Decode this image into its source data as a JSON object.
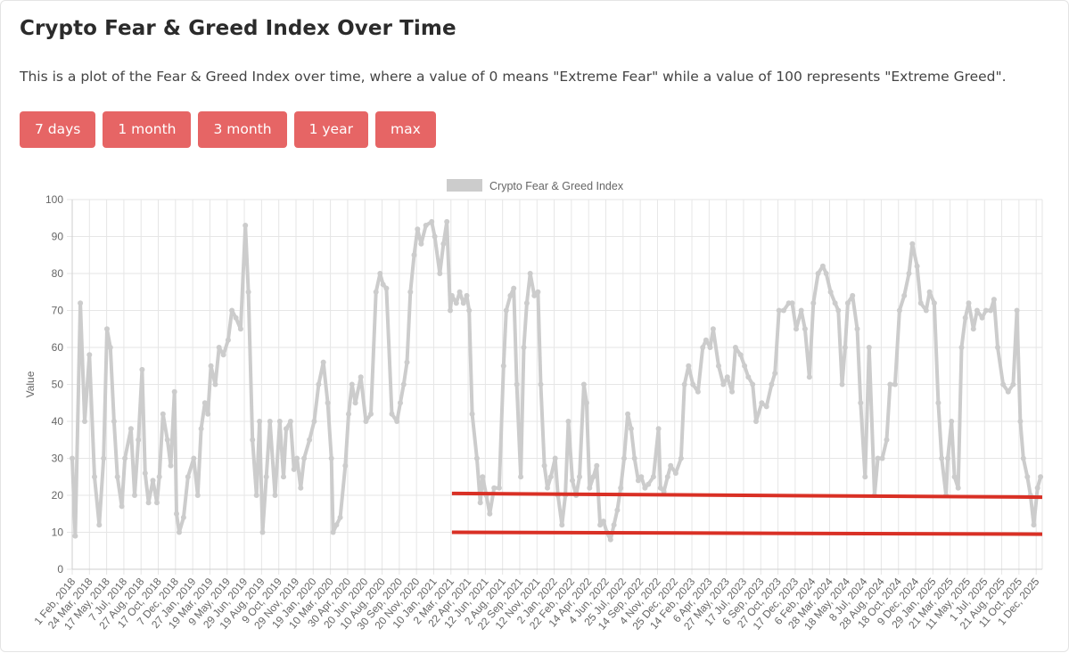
{
  "page": {
    "title": "Crypto Fear & Greed Index Over Time",
    "description": "This is a plot of the Fear & Greed Index over time, where a value of 0 means \"Extreme Fear\" while a value of 100 represents \"Extreme Greed\"."
  },
  "range_buttons": [
    {
      "label": "7 days"
    },
    {
      "label": "1 month"
    },
    {
      "label": "3 month"
    },
    {
      "label": "1 year"
    },
    {
      "label": "max"
    }
  ],
  "colors": {
    "button": "#e66565",
    "series": "#cccccc",
    "annotation": "#d93025",
    "grid": "#e6e6e6"
  },
  "chart_data": {
    "type": "line",
    "ylabel": "Value",
    "ylim": [
      0,
      100
    ],
    "yticks": [
      0,
      10,
      20,
      30,
      40,
      50,
      60,
      70,
      80,
      90,
      100
    ],
    "grid": true,
    "legend_position": "top-center",
    "x_tick_labels": [
      "1 Feb, 2018",
      "24 Mar, 2018",
      "17 May, 2018",
      "7 Jul, 2018",
      "27 Aug, 2018",
      "17 Oct, 2018",
      "7 Dec, 2018",
      "27 Jan, 2019",
      "19 Mar, 2019",
      "9 May, 2019",
      "29 Jun, 2019",
      "19 Aug, 2019",
      "9 Oct, 2019",
      "29 Nov, 2019",
      "19 Jan, 2020",
      "10 Mar, 2020",
      "30 Apr, 2020",
      "20 Jun, 2020",
      "10 Aug, 2020",
      "30 Sep, 2020",
      "20 Nov, 2020",
      "10 Jan, 2021",
      "2 Mar, 2021",
      "22 Apr, 2021",
      "12 Jun, 2021",
      "2 Aug, 2021",
      "22 Sep, 2021",
      "12 Nov, 2021",
      "2 Jan, 2022",
      "22 Feb, 2022",
      "14 Apr, 2022",
      "4 Jun, 2022",
      "25 Jul, 2022",
      "14 Sep, 2022",
      "4 Nov, 2022",
      "25 Dec, 2022",
      "14 Feb, 2023",
      "6 Apr, 2023",
      "27 May, 2023",
      "17 Jul, 2023",
      "6 Sep, 2023",
      "27 Oct, 2023",
      "17 Dec, 2023",
      "6 Feb, 2024",
      "28 Mar, 2024",
      "18 May, 2024",
      "8 Jul, 2024",
      "28 Aug, 2024",
      "18 Oct, 2024",
      "9 Dec, 2024",
      "29 Jan, 2025",
      "21 Mar, 2025",
      "11 May, 2025",
      "1 Jul, 2025",
      "21 Aug, 2025",
      "11 Oct, 2025",
      "1 Dec, 2025"
    ],
    "series": [
      {
        "name": "Crypto Fear & Greed Index",
        "color": "#cccccc",
        "points": [
          [
            "2018-02-01",
            30
          ],
          [
            "2018-02-10",
            9
          ],
          [
            "2018-02-25",
            72
          ],
          [
            "2018-03-10",
            40
          ],
          [
            "2018-03-24",
            58
          ],
          [
            "2018-04-08",
            25
          ],
          [
            "2018-04-22",
            12
          ],
          [
            "2018-05-05",
            30
          ],
          [
            "2018-05-15",
            65
          ],
          [
            "2018-05-25",
            60
          ],
          [
            "2018-06-05",
            40
          ],
          [
            "2018-06-15",
            25
          ],
          [
            "2018-06-28",
            17
          ],
          [
            "2018-07-07",
            30
          ],
          [
            "2018-07-25",
            38
          ],
          [
            "2018-08-05",
            20
          ],
          [
            "2018-08-16",
            35
          ],
          [
            "2018-08-27",
            54
          ],
          [
            "2018-09-05",
            26
          ],
          [
            "2018-09-15",
            18
          ],
          [
            "2018-09-28",
            24
          ],
          [
            "2018-10-10",
            18
          ],
          [
            "2018-10-17",
            25
          ],
          [
            "2018-10-28",
            42
          ],
          [
            "2018-11-10",
            35
          ],
          [
            "2018-11-20",
            28
          ],
          [
            "2018-12-01",
            48
          ],
          [
            "2018-12-07",
            15
          ],
          [
            "2018-12-15",
            10
          ],
          [
            "2018-12-28",
            14
          ],
          [
            "2019-01-10",
            25
          ],
          [
            "2019-01-27",
            30
          ],
          [
            "2019-02-08",
            20
          ],
          [
            "2019-02-18",
            38
          ],
          [
            "2019-03-01",
            45
          ],
          [
            "2019-03-10",
            42
          ],
          [
            "2019-03-19",
            55
          ],
          [
            "2019-04-01",
            50
          ],
          [
            "2019-04-12",
            60
          ],
          [
            "2019-04-25",
            58
          ],
          [
            "2019-05-09",
            62
          ],
          [
            "2019-05-20",
            70
          ],
          [
            "2019-06-01",
            68
          ],
          [
            "2019-06-15",
            65
          ],
          [
            "2019-06-29",
            93
          ],
          [
            "2019-07-08",
            75
          ],
          [
            "2019-07-20",
            35
          ],
          [
            "2019-08-01",
            20
          ],
          [
            "2019-08-10",
            40
          ],
          [
            "2019-08-19",
            10
          ],
          [
            "2019-08-30",
            25
          ],
          [
            "2019-09-10",
            40
          ],
          [
            "2019-09-25",
            20
          ],
          [
            "2019-10-09",
            40
          ],
          [
            "2019-10-20",
            25
          ],
          [
            "2019-10-28",
            38
          ],
          [
            "2019-11-10",
            40
          ],
          [
            "2019-11-20",
            27
          ],
          [
            "2019-11-29",
            30
          ],
          [
            "2019-12-10",
            22
          ],
          [
            "2019-12-20",
            30
          ],
          [
            "2020-01-05",
            35
          ],
          [
            "2020-01-19",
            40
          ],
          [
            "2020-02-01",
            50
          ],
          [
            "2020-02-15",
            56
          ],
          [
            "2020-02-28",
            45
          ],
          [
            "2020-03-10",
            30
          ],
          [
            "2020-03-15",
            10
          ],
          [
            "2020-03-25",
            12
          ],
          [
            "2020-04-05",
            14
          ],
          [
            "2020-04-20",
            28
          ],
          [
            "2020-04-30",
            42
          ],
          [
            "2020-05-10",
            50
          ],
          [
            "2020-05-20",
            45
          ],
          [
            "2020-06-05",
            52
          ],
          [
            "2020-06-20",
            40
          ],
          [
            "2020-07-05",
            42
          ],
          [
            "2020-07-20",
            75
          ],
          [
            "2020-08-01",
            80
          ],
          [
            "2020-08-10",
            77
          ],
          [
            "2020-08-20",
            76
          ],
          [
            "2020-09-05",
            42
          ],
          [
            "2020-09-20",
            40
          ],
          [
            "2020-09-30",
            45
          ],
          [
            "2020-10-10",
            50
          ],
          [
            "2020-10-20",
            56
          ],
          [
            "2020-10-30",
            75
          ],
          [
            "2020-11-10",
            85
          ],
          [
            "2020-11-20",
            92
          ],
          [
            "2020-12-01",
            88
          ],
          [
            "2020-12-15",
            93
          ],
          [
            "2021-01-01",
            94
          ],
          [
            "2021-01-10",
            90
          ],
          [
            "2021-01-25",
            80
          ],
          [
            "2021-02-05",
            88
          ],
          [
            "2021-02-15",
            94
          ],
          [
            "2021-02-25",
            70
          ],
          [
            "2021-03-02",
            74
          ],
          [
            "2021-03-15",
            72
          ],
          [
            "2021-03-25",
            75
          ],
          [
            "2021-04-05",
            72
          ],
          [
            "2021-04-15",
            74
          ],
          [
            "2021-04-22",
            70
          ],
          [
            "2021-05-01",
            42
          ],
          [
            "2021-05-15",
            30
          ],
          [
            "2021-05-25",
            18
          ],
          [
            "2021-06-01",
            25
          ],
          [
            "2021-06-12",
            20
          ],
          [
            "2021-06-22",
            15
          ],
          [
            "2021-07-05",
            22
          ],
          [
            "2021-07-20",
            22
          ],
          [
            "2021-08-02",
            55
          ],
          [
            "2021-08-10",
            70
          ],
          [
            "2021-08-22",
            74
          ],
          [
            "2021-09-01",
            76
          ],
          [
            "2021-09-10",
            50
          ],
          [
            "2021-09-22",
            25
          ],
          [
            "2021-10-01",
            60
          ],
          [
            "2021-10-10",
            72
          ],
          [
            "2021-10-20",
            80
          ],
          [
            "2021-11-01",
            74
          ],
          [
            "2021-11-12",
            75
          ],
          [
            "2021-11-20",
            50
          ],
          [
            "2021-12-01",
            28
          ],
          [
            "2021-12-10",
            22
          ],
          [
            "2021-12-20",
            25
          ],
          [
            "2022-01-02",
            30
          ],
          [
            "2022-01-10",
            20
          ],
          [
            "2022-01-22",
            12
          ],
          [
            "2022-02-01",
            20
          ],
          [
            "2022-02-10",
            40
          ],
          [
            "2022-02-22",
            24
          ],
          [
            "2022-03-05",
            20
          ],
          [
            "2022-03-15",
            25
          ],
          [
            "2022-03-28",
            50
          ],
          [
            "2022-04-05",
            45
          ],
          [
            "2022-04-14",
            22
          ],
          [
            "2022-04-25",
            25
          ],
          [
            "2022-05-05",
            28
          ],
          [
            "2022-05-15",
            12
          ],
          [
            "2022-05-25",
            13
          ],
          [
            "2022-06-04",
            10
          ],
          [
            "2022-06-15",
            8
          ],
          [
            "2022-06-25",
            12
          ],
          [
            "2022-07-05",
            16
          ],
          [
            "2022-07-15",
            22
          ],
          [
            "2022-07-25",
            30
          ],
          [
            "2022-08-05",
            42
          ],
          [
            "2022-08-15",
            38
          ],
          [
            "2022-08-25",
            30
          ],
          [
            "2022-09-05",
            24
          ],
          [
            "2022-09-14",
            25
          ],
          [
            "2022-09-25",
            22
          ],
          [
            "2022-10-05",
            23
          ],
          [
            "2022-10-20",
            25
          ],
          [
            "2022-11-04",
            38
          ],
          [
            "2022-11-10",
            22
          ],
          [
            "2022-11-20",
            21
          ],
          [
            "2022-12-01",
            25
          ],
          [
            "2022-12-10",
            28
          ],
          [
            "2022-12-25",
            26
          ],
          [
            "2023-01-10",
            30
          ],
          [
            "2023-01-20",
            50
          ],
          [
            "2023-02-01",
            55
          ],
          [
            "2023-02-14",
            50
          ],
          [
            "2023-03-01",
            48
          ],
          [
            "2023-03-15",
            60
          ],
          [
            "2023-03-25",
            62
          ],
          [
            "2023-04-06",
            60
          ],
          [
            "2023-04-15",
            65
          ],
          [
            "2023-05-01",
            55
          ],
          [
            "2023-05-15",
            50
          ],
          [
            "2023-05-27",
            52
          ],
          [
            "2023-06-10",
            48
          ],
          [
            "2023-06-20",
            60
          ],
          [
            "2023-07-05",
            58
          ],
          [
            "2023-07-17",
            55
          ],
          [
            "2023-07-28",
            52
          ],
          [
            "2023-08-10",
            50
          ],
          [
            "2023-08-20",
            40
          ],
          [
            "2023-09-06",
            45
          ],
          [
            "2023-09-20",
            44
          ],
          [
            "2023-10-05",
            50
          ],
          [
            "2023-10-15",
            53
          ],
          [
            "2023-10-27",
            70
          ],
          [
            "2023-11-10",
            70
          ],
          [
            "2023-11-25",
            72
          ],
          [
            "2023-12-05",
            72
          ],
          [
            "2023-12-17",
            65
          ],
          [
            "2024-01-01",
            70
          ],
          [
            "2024-01-12",
            65
          ],
          [
            "2024-01-25",
            52
          ],
          [
            "2024-02-06",
            72
          ],
          [
            "2024-02-20",
            80
          ],
          [
            "2024-03-05",
            82
          ],
          [
            "2024-03-15",
            80
          ],
          [
            "2024-03-28",
            75
          ],
          [
            "2024-04-10",
            72
          ],
          [
            "2024-04-20",
            70
          ],
          [
            "2024-05-01",
            50
          ],
          [
            "2024-05-10",
            60
          ],
          [
            "2024-05-18",
            72
          ],
          [
            "2024-06-01",
            74
          ],
          [
            "2024-06-15",
            65
          ],
          [
            "2024-06-25",
            45
          ],
          [
            "2024-07-08",
            25
          ],
          [
            "2024-07-20",
            60
          ],
          [
            "2024-08-05",
            20
          ],
          [
            "2024-08-15",
            30
          ],
          [
            "2024-08-28",
            30
          ],
          [
            "2024-09-10",
            35
          ],
          [
            "2024-09-20",
            50
          ],
          [
            "2024-10-05",
            50
          ],
          [
            "2024-10-18",
            70
          ],
          [
            "2024-11-01",
            74
          ],
          [
            "2024-11-15",
            80
          ],
          [
            "2024-11-25",
            88
          ],
          [
            "2024-12-09",
            82
          ],
          [
            "2024-12-20",
            72
          ],
          [
            "2025-01-05",
            70
          ],
          [
            "2025-01-15",
            75
          ],
          [
            "2025-01-29",
            72
          ],
          [
            "2025-02-10",
            45
          ],
          [
            "2025-02-20",
            30
          ],
          [
            "2025-03-05",
            20
          ],
          [
            "2025-03-10",
            30
          ],
          [
            "2025-03-21",
            40
          ],
          [
            "2025-03-30",
            25
          ],
          [
            "2025-04-10",
            22
          ],
          [
            "2025-04-20",
            60
          ],
          [
            "2025-05-01",
            68
          ],
          [
            "2025-05-11",
            72
          ],
          [
            "2025-05-25",
            65
          ],
          [
            "2025-06-05",
            70
          ],
          [
            "2025-06-20",
            68
          ],
          [
            "2025-07-01",
            70
          ],
          [
            "2025-07-15",
            70
          ],
          [
            "2025-07-25",
            73
          ],
          [
            "2025-08-05",
            60
          ],
          [
            "2025-08-21",
            50
          ],
          [
            "2025-09-05",
            48
          ],
          [
            "2025-09-20",
            50
          ],
          [
            "2025-10-01",
            70
          ],
          [
            "2025-10-11",
            40
          ],
          [
            "2025-10-20",
            30
          ],
          [
            "2025-11-01",
            25
          ],
          [
            "2025-11-10",
            20
          ],
          [
            "2025-11-20",
            12
          ],
          [
            "2025-12-01",
            22
          ],
          [
            "2025-12-10",
            25
          ]
        ]
      }
    ],
    "annotation_lines": [
      {
        "from": "2021-03-02",
        "to": "2025-12-15",
        "y_start": 20.5,
        "y_end": 19.5,
        "color": "#d93025"
      },
      {
        "from": "2021-03-02",
        "to": "2025-12-15",
        "y_start": 10,
        "y_end": 9.5,
        "color": "#d93025"
      }
    ]
  }
}
